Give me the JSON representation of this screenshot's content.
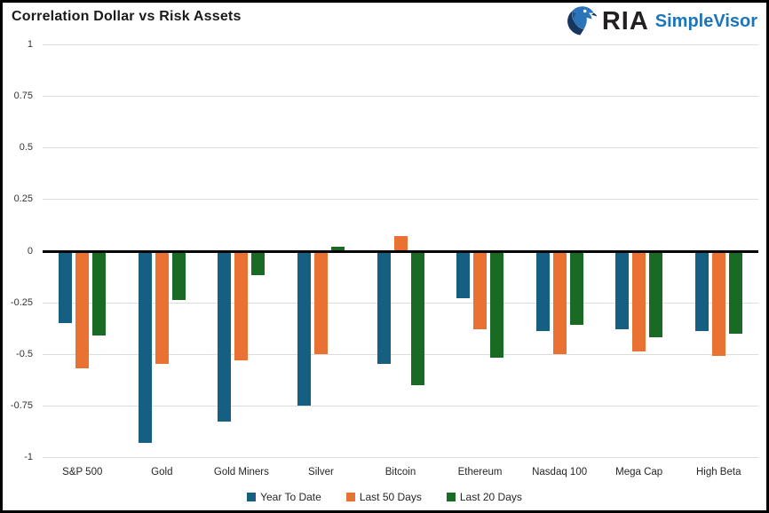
{
  "header": {
    "title": "Correlation Dollar vs Risk Assets",
    "logo": {
      "ria_text": "RIA",
      "simplevisor_text": "SimpleVisor",
      "ria_color": "#231f20",
      "simplevisor_color": "#1b75bc",
      "eagle_dark_color": "#16355f",
      "eagle_blue_color": "#2b74ba"
    }
  },
  "chart_data": {
    "type": "bar",
    "title": "Correlation Dollar vs Risk Assets",
    "categories": [
      "S&P 500",
      "Gold",
      "Gold Miners",
      "Silver",
      "Bitcoin",
      "Ethereum",
      "Nasdaq 100",
      "Mega Cap",
      "High Beta"
    ],
    "series": [
      {
        "name": "Year To Date",
        "color": "#156082",
        "values": [
          -0.35,
          -0.93,
          -0.83,
          -0.75,
          -0.55,
          -0.23,
          -0.39,
          -0.38,
          -0.39
        ]
      },
      {
        "name": "Last 50 Days",
        "color": "#E97132",
        "values": [
          -0.57,
          -0.55,
          -0.53,
          -0.5,
          0.07,
          -0.38,
          -0.5,
          -0.49,
          -0.51
        ]
      },
      {
        "name": "Last 20 Days",
        "color": "#196B24",
        "values": [
          -0.41,
          -0.24,
          -0.12,
          0.02,
          -0.65,
          -0.52,
          -0.36,
          -0.42,
          -0.4
        ]
      }
    ],
    "xlabel": "",
    "ylabel": "",
    "ylim": [
      -1,
      1
    ],
    "yticks": [
      1,
      0.75,
      0.5,
      0.25,
      0,
      -0.25,
      -0.5,
      -0.75,
      -1
    ],
    "ytick_labels": [
      "1",
      "0.75",
      "0.5",
      "0.25",
      "0",
      "-0.25",
      "-0.5",
      "-0.75",
      "-1"
    ],
    "grid": "horizontal",
    "gridline_color": "#dcdcdc",
    "zero_line_color": "#000000",
    "legend_position": "bottom-center"
  }
}
